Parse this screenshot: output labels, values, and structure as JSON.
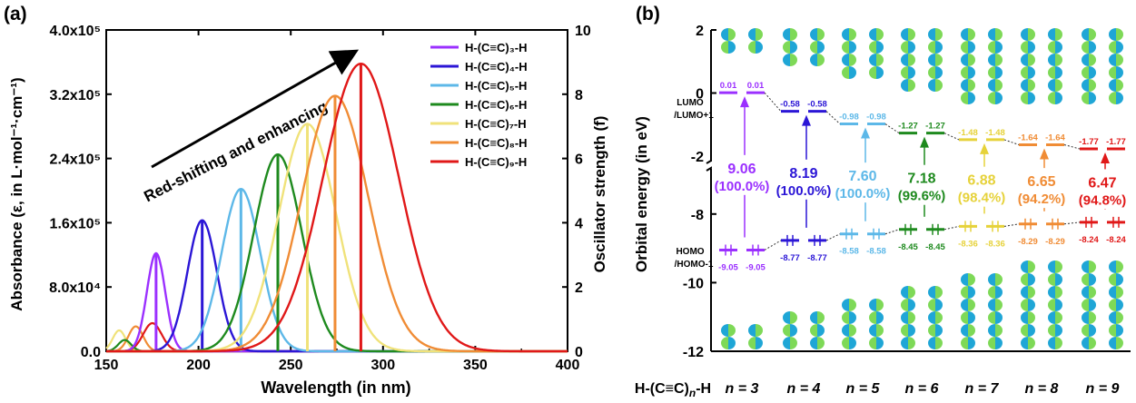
{
  "chart_data": [
    {
      "type": "line",
      "panel_label": "(a)",
      "xlabel": "Wavelength (in nm)",
      "ylabel": "Absorbance (ε, in L·mol⁻¹·cm⁻¹)",
      "y2label": "Oscillator strength (f)",
      "xlim": [
        150,
        400
      ],
      "ylim": [
        0,
        400000
      ],
      "y2lim": [
        0,
        10
      ],
      "xticks": [
        "150",
        "200",
        "250",
        "300",
        "350",
        "400"
      ],
      "yticks": [
        "0.0",
        "8.0x10⁴",
        "1.6x10⁵",
        "2.4x10⁵",
        "3.2x10⁵",
        "4.0x10⁵"
      ],
      "y2ticks": [
        "0",
        "2",
        "4",
        "6",
        "8",
        "10"
      ],
      "annotation": "Red-shifting and enhancing",
      "legend_position": "top-right",
      "series": [
        {
          "name": "H-(C≡C)₃-H",
          "color": "#9B30FF",
          "peak_nm": 177,
          "peak_eps": 122000,
          "width_nm": 5,
          "osc_f": 3.05
        },
        {
          "name": "H-(C≡C)₄-H",
          "color": "#2B16D6",
          "peak_nm": 202,
          "peak_eps": 163000,
          "width_nm": 8,
          "osc_f": 4.08
        },
        {
          "name": "H-(C≡C)₅-H",
          "color": "#5DB8E8",
          "peak_nm": 223,
          "peak_eps": 202000,
          "width_nm": 10.5,
          "osc_f": 5.05
        },
        {
          "name": "H-(C≡C)₆-H",
          "color": "#1E8A1E",
          "peak_nm": 243,
          "peak_eps": 245000,
          "width_nm": 13,
          "osc_f": 6.1
        },
        {
          "name": "H-(C≡C)₇-H",
          "color": "#F0E27A",
          "peak_nm": 259,
          "peak_eps": 283000,
          "width_nm": 15.5,
          "osc_f": 7.07
        },
        {
          "name": "H-(C≡C)₈-H",
          "color": "#F08C35",
          "peak_nm": 274,
          "peak_eps": 318000,
          "width_nm": 18,
          "osc_f": 7.95
        },
        {
          "name": "H-(C≡C)₉-H",
          "color": "#E01818",
          "peak_nm": 288,
          "peak_eps": 358000,
          "width_nm": 20.5,
          "osc_f": 8.95
        }
      ],
      "minor_peaks": [
        {
          "color": "#F0E27A",
          "peak_nm": 157,
          "peak_eps": 26000,
          "width_nm": 3.5
        },
        {
          "color": "#F08C35",
          "peak_nm": 166,
          "peak_eps": 31000,
          "width_nm": 4
        },
        {
          "color": "#E01818",
          "peak_nm": 175,
          "peak_eps": 35000,
          "width_nm": 5
        },
        {
          "color": "#1E8A1E",
          "peak_nm": 160,
          "peak_eps": 14000,
          "width_nm": 3.5
        }
      ]
    },
    {
      "type": "scatter",
      "panel_label": "(b)",
      "ylabel": "Orbital energy (in eV)",
      "yticks_upper": [
        "2",
        "0",
        "-2"
      ],
      "yticks_lower": [
        "-8",
        "-10",
        "-12"
      ],
      "ylim_upper": [
        -2,
        2
      ],
      "ylim_lower": [
        -12,
        -7
      ],
      "xlabel_prefix": "H-(C≡C)",
      "xlabel_sub": "n",
      "xlabel_suffix": "-H",
      "lumo_label": [
        "LUMO",
        "/LUMO+1"
      ],
      "homo_label": [
        "HOMO",
        "/HOMO-1"
      ],
      "columns": [
        {
          "n_label": "n = 3",
          "color": "#9B30FF",
          "lumo": 0.01,
          "lumo_text": "0.01",
          "homo": -9.05,
          "homo_text": "-9.05",
          "gap": "9.06",
          "pct": "(100.0%)"
        },
        {
          "n_label": "n = 4",
          "color": "#2B16D6",
          "lumo": -0.58,
          "lumo_text": "-0.58",
          "homo": -8.77,
          "homo_text": "-8.77",
          "gap": "8.19",
          "pct": "(100.0%)"
        },
        {
          "n_label": "n = 5",
          "color": "#5DB8E8",
          "lumo": -0.98,
          "lumo_text": "-0.98",
          "homo": -8.58,
          "homo_text": "-8.58",
          "gap": "7.60",
          "pct": "(100.0%)"
        },
        {
          "n_label": "n = 6",
          "color": "#1E8A1E",
          "lumo": -1.27,
          "lumo_text": "-1.27",
          "homo": -8.45,
          "homo_text": "-8.45",
          "gap": "7.18",
          "pct": "(99.6%)"
        },
        {
          "n_label": "n = 7",
          "color": "#E6D23A",
          "lumo": -1.48,
          "lumo_text": "-1.48",
          "homo": -8.36,
          "homo_text": "-8.36",
          "gap": "6.88",
          "pct": "(98.4%)"
        },
        {
          "n_label": "n = 8",
          "color": "#F08C35",
          "lumo": -1.64,
          "lumo_text": "-1.64",
          "homo": -8.29,
          "homo_text": "-8.29",
          "gap": "6.65",
          "pct": "(94.2%)"
        },
        {
          "n_label": "n = 9",
          "color": "#E01818",
          "lumo": -1.77,
          "lumo_text": "-1.77",
          "homo": -8.24,
          "homo_text": "-8.24",
          "gap": "6.47",
          "pct": "(94.8%)"
        }
      ],
      "orbital_colors": {
        "lobe_a": "#1FA6D6",
        "lobe_b": "#7ED957"
      }
    }
  ]
}
